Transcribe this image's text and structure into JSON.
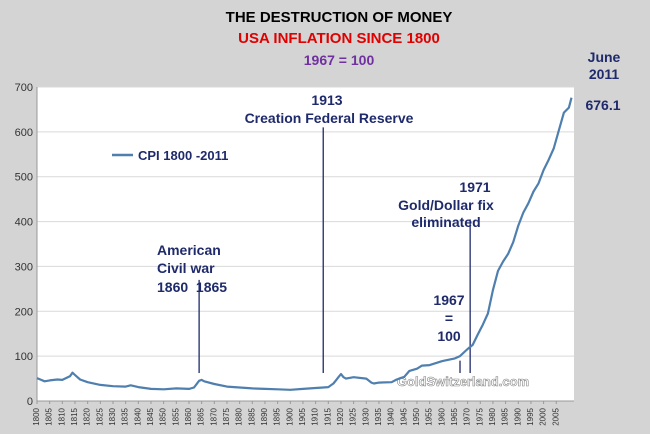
{
  "chart_data": {
    "type": "line",
    "title": "THE DESTRUCTION OF MONEY",
    "subtitle": "USA INFLATION SINCE 1800",
    "base_note": "1967 = 100",
    "legend": "CPI 1800 -2011",
    "watermark": "GoldSwitzerland.com",
    "ylim": [
      0,
      700
    ],
    "yticks": [
      0,
      100,
      200,
      300,
      400,
      500,
      600,
      700
    ],
    "xlim": [
      1800,
      2011
    ],
    "xticks": [
      1800,
      1805,
      1810,
      1815,
      1820,
      1825,
      1830,
      1835,
      1840,
      1845,
      1850,
      1855,
      1860,
      1865,
      1870,
      1875,
      1880,
      1885,
      1890,
      1895,
      1900,
      1905,
      1910,
      1915,
      1920,
      1925,
      1930,
      1935,
      1940,
      1945,
      1950,
      1955,
      1960,
      1965,
      1970,
      1975,
      1980,
      1985,
      1990,
      1995,
      2000,
      2005
    ],
    "series": [
      {
        "name": "CPI 1800 -2011",
        "color": "#4f7fae",
        "x": [
          1800,
          1803,
          1805,
          1808,
          1810,
          1813,
          1814,
          1815,
          1817,
          1820,
          1825,
          1830,
          1835,
          1837,
          1840,
          1845,
          1850,
          1855,
          1860,
          1862,
          1864,
          1865,
          1866,
          1870,
          1875,
          1880,
          1885,
          1890,
          1895,
          1900,
          1905,
          1910,
          1913,
          1915,
          1917,
          1918,
          1919,
          1920,
          1921,
          1922,
          1925,
          1930,
          1932,
          1933,
          1935,
          1940,
          1942,
          1945,
          1947,
          1950,
          1952,
          1955,
          1960,
          1965,
          1967,
          1970,
          1972,
          1974,
          1976,
          1978,
          1980,
          1982,
          1984,
          1986,
          1988,
          1990,
          1992,
          1994,
          1996,
          1998,
          2000,
          2002,
          2004,
          2006,
          2008,
          2010,
          2011
        ],
        "values": [
          51,
          44,
          46,
          48,
          47,
          55,
          63,
          58,
          48,
          42,
          36,
          33,
          32,
          35,
          31,
          27,
          26,
          28,
          27,
          30,
          45,
          47,
          44,
          38,
          32,
          30,
          28,
          27,
          26,
          25,
          27,
          29,
          30,
          31,
          39,
          46,
          53,
          60,
          53,
          50,
          53,
          50,
          41,
          39,
          41,
          42,
          48,
          54,
          67,
          72,
          79,
          80,
          89,
          95,
          100,
          116,
          125,
          148,
          170,
          195,
          247,
          290,
          311,
          328,
          354,
          391,
          420,
          441,
          467,
          485,
          515,
          538,
          563,
          603,
          643,
          654,
          676.1
        ]
      }
    ],
    "annotations": [
      {
        "id": "civil-war",
        "x": 1864,
        "line_top": 270,
        "lines": [
          "American",
          "Civil war",
          "1860  1865"
        ]
      },
      {
        "id": "fed",
        "x": 1913,
        "line_top": 610,
        "lines": [
          "1913",
          "Creation Federal Reserve"
        ]
      },
      {
        "id": "gold",
        "x": 1971,
        "line_top": 405,
        "lines": [
          "1971",
          "Gold/Dollar fix",
          "eliminated"
        ]
      },
      {
        "id": "base",
        "x": 1967,
        "line_top": 90,
        "lines": [
          "1967",
          "=",
          "100"
        ]
      },
      {
        "id": "latest",
        "lines": [
          "June",
          "2011",
          "676.1"
        ]
      }
    ]
  },
  "colors": {
    "background": "#d4d4d4",
    "plot_background": "#ffffff",
    "title": "#000000",
    "subtitle": "#e00000",
    "base_note": "#7030a0",
    "annotation": "#1f2a6b",
    "vline": "#1f2a6b",
    "axis_text": "#333333"
  }
}
